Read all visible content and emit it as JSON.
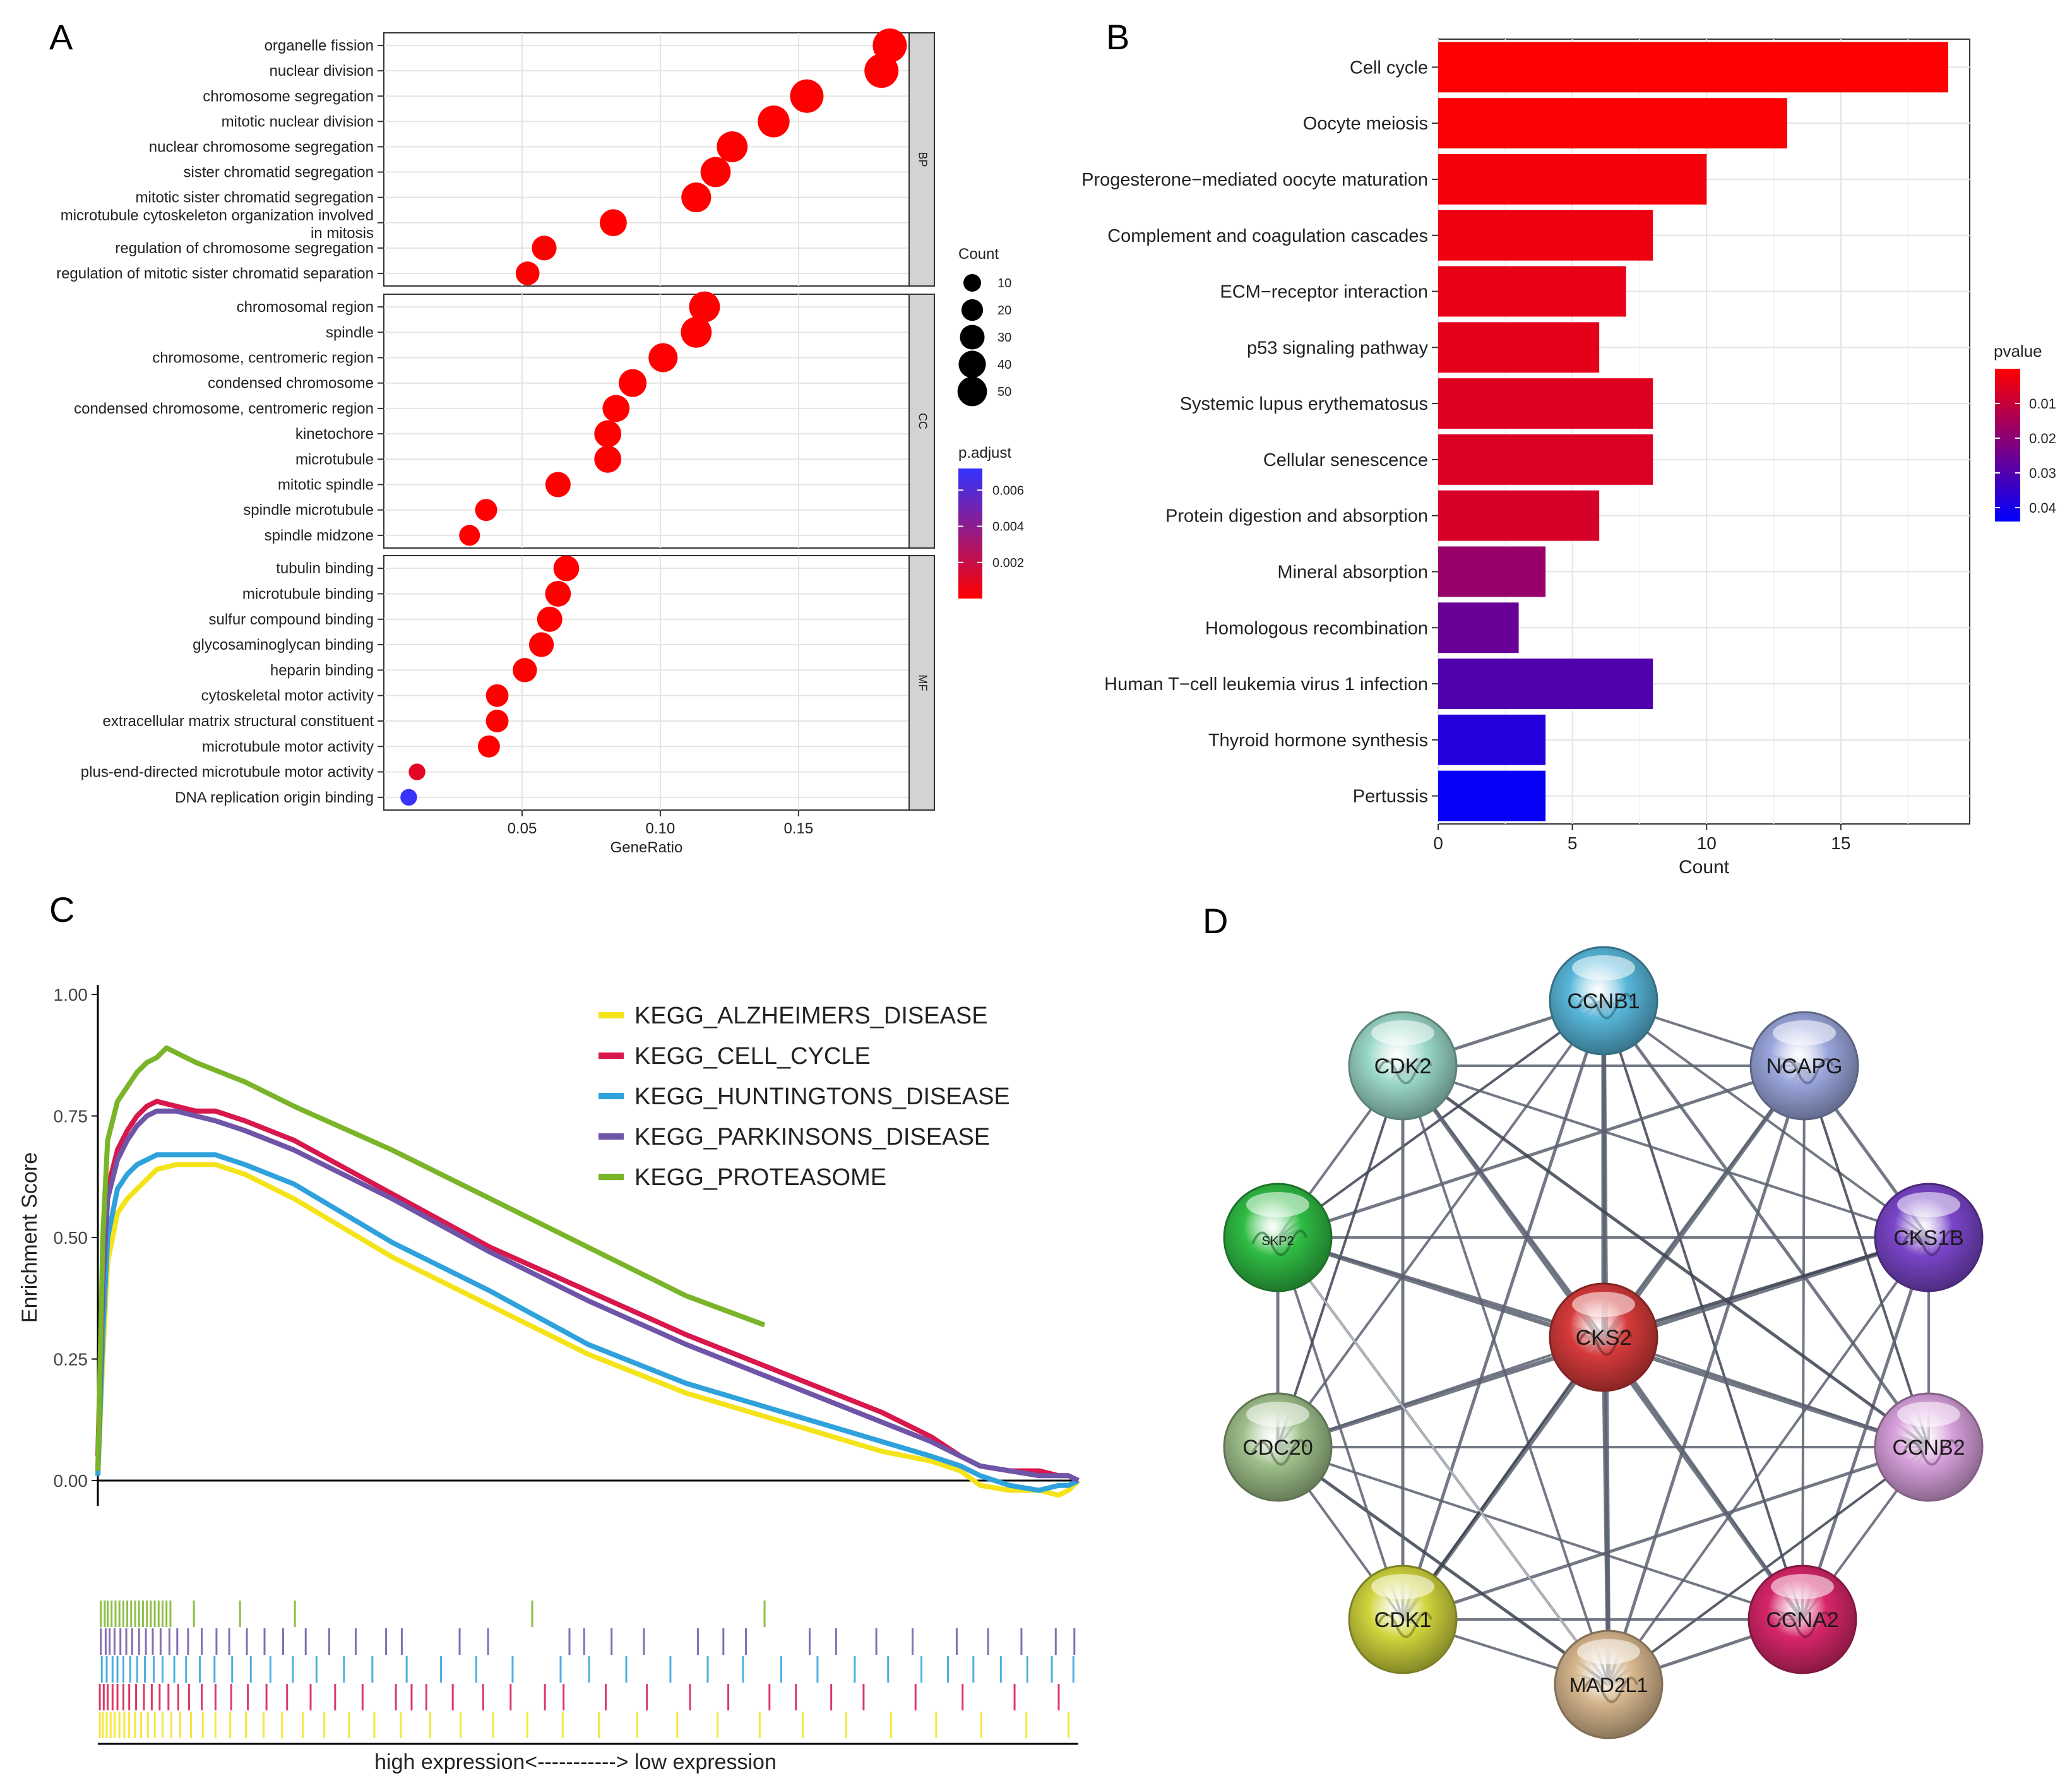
{
  "panel_letters": [
    "A",
    "B",
    "C",
    "D"
  ],
  "chart_data": [
    {
      "panel": "A",
      "type": "scatter",
      "xlabel": "GeneRatio",
      "xlim": [
        0.0,
        0.19
      ],
      "xticks": [
        "0.05",
        "0.10",
        "0.15"
      ],
      "xtick_values": [
        0.05,
        0.1,
        0.15
      ],
      "grid": true,
      "facets": [
        {
          "name": "BP",
          "terms": [
            {
              "label": [
                "organelle fission"
              ],
              "x": 0.183,
              "count": 40,
              "p_adjust": 0.0
            },
            {
              "label": [
                "nuclear division"
              ],
              "x": 0.18,
              "count": 40,
              "p_adjust": 0.0
            },
            {
              "label": [
                "chromosome segregation"
              ],
              "x": 0.153,
              "count": 38,
              "p_adjust": 0.0
            },
            {
              "label": [
                "mitotic nuclear division"
              ],
              "x": 0.141,
              "count": 33,
              "p_adjust": 0.0
            },
            {
              "label": [
                "nuclear chromosome segregation"
              ],
              "x": 0.126,
              "count": 30,
              "p_adjust": 0.0
            },
            {
              "label": [
                "sister chromatid segregation"
              ],
              "x": 0.12,
              "count": 28,
              "p_adjust": 0.0
            },
            {
              "label": [
                "mitotic sister chromatid segregation"
              ],
              "x": 0.113,
              "count": 27,
              "p_adjust": 0.0
            },
            {
              "label": [
                "microtubule cytoskeleton organization involved",
                "in mitosis"
              ],
              "x": 0.083,
              "count": 20,
              "p_adjust": 0.0
            },
            {
              "label": [
                "regulation of chromosome segregation"
              ],
              "x": 0.058,
              "count": 15,
              "p_adjust": 0.0
            },
            {
              "label": [
                "regulation of mitotic sister chromatid separation"
              ],
              "x": 0.052,
              "count": 13,
              "p_adjust": 0.0
            }
          ]
        },
        {
          "name": "CC",
          "terms": [
            {
              "label": [
                "chromosomal region"
              ],
              "x": 0.116,
              "count": 30,
              "p_adjust": 0.0
            },
            {
              "label": [
                "spindle"
              ],
              "x": 0.113,
              "count": 30,
              "p_adjust": 0.0
            },
            {
              "label": [
                "chromosome, centromeric region"
              ],
              "x": 0.101,
              "count": 25,
              "p_adjust": 0.0
            },
            {
              "label": [
                "condensed chromosome"
              ],
              "x": 0.09,
              "count": 22,
              "p_adjust": 0.0
            },
            {
              "label": [
                "condensed chromosome, centromeric region"
              ],
              "x": 0.084,
              "count": 20,
              "p_adjust": 0.0
            },
            {
              "label": [
                "kinetochore"
              ],
              "x": 0.081,
              "count": 20,
              "p_adjust": 0.0
            },
            {
              "label": [
                "microtubule"
              ],
              "x": 0.081,
              "count": 20,
              "p_adjust": 0.0
            },
            {
              "label": [
                "mitotic spindle"
              ],
              "x": 0.063,
              "count": 16,
              "p_adjust": 0.0
            },
            {
              "label": [
                "spindle microtubule"
              ],
              "x": 0.037,
              "count": 10,
              "p_adjust": 0.0
            },
            {
              "label": [
                "spindle midzone"
              ],
              "x": 0.031,
              "count": 8,
              "p_adjust": 0.0
            }
          ]
        },
        {
          "name": "MF",
          "terms": [
            {
              "label": [
                "tubulin binding"
              ],
              "x": 0.066,
              "count": 17,
              "p_adjust": 0.0
            },
            {
              "label": [
                "microtubule binding"
              ],
              "x": 0.063,
              "count": 17,
              "p_adjust": 0.0
            },
            {
              "label": [
                "sulfur compound binding"
              ],
              "x": 0.06,
              "count": 16,
              "p_adjust": 0.0
            },
            {
              "label": [
                "glycosaminoglycan binding"
              ],
              "x": 0.057,
              "count": 15,
              "p_adjust": 0.0
            },
            {
              "label": [
                "heparin binding"
              ],
              "x": 0.051,
              "count": 14,
              "p_adjust": 0.0
            },
            {
              "label": [
                "cytoskeletal motor activity"
              ],
              "x": 0.041,
              "count": 11,
              "p_adjust": 0.0
            },
            {
              "label": [
                "extracellular matrix structural constituent"
              ],
              "x": 0.041,
              "count": 11,
              "p_adjust": 0.0
            },
            {
              "label": [
                "microtubule motor activity"
              ],
              "x": 0.038,
              "count": 10,
              "p_adjust": 0.0
            },
            {
              "label": [
                "plus-end-directed microtubule motor activity"
              ],
              "x": 0.012,
              "count": 3,
              "p_adjust": 0.001
            },
            {
              "label": [
                "DNA replication origin binding"
              ],
              "x": 0.009,
              "count": 3,
              "p_adjust": 0.007
            }
          ]
        }
      ],
      "size_legend": {
        "title": "Count",
        "values": [
          10,
          20,
          30,
          40,
          50
        ]
      },
      "color_legend": {
        "title": "p.adjust",
        "ticks": [
          "0.006",
          "0.004",
          "0.002"
        ],
        "tick_values": [
          0.006,
          0.004,
          0.002
        ],
        "range": [
          0.0,
          0.0072
        ],
        "low_color": "#ff0000",
        "high_color": "#3333ff"
      }
    },
    {
      "panel": "B",
      "type": "bar",
      "orientation": "horizontal",
      "xlabel": "Count",
      "xlim": [
        0,
        19.8
      ],
      "xticks": [
        "0",
        "5",
        "10",
        "15"
      ],
      "xtick_values": [
        0,
        5,
        10,
        15
      ],
      "grid": true,
      "categories": [
        "Cell cycle",
        "Oocyte meiosis",
        "Progesterone−mediated oocyte maturation",
        "Complement and coagulation cascades",
        "ECM−receptor interaction",
        "p53 signaling pathway",
        "Systemic lupus erythematosus",
        "Cellular senescence",
        "Protein digestion and absorption",
        "Mineral absorption",
        "Homologous recombination",
        "Human T−cell leukemia virus 1 infection",
        "Thyroid hormone synthesis",
        "Pertussis"
      ],
      "values": [
        19,
        13,
        10,
        8,
        7,
        6,
        8,
        8,
        6,
        4,
        3,
        8,
        4,
        4
      ],
      "pvalues": [
        0.0002,
        0.0005,
        0.0015,
        0.003,
        0.004,
        0.0045,
        0.0055,
        0.006,
        0.007,
        0.018,
        0.026,
        0.03,
        0.038,
        0.043
      ],
      "color_legend": {
        "title": "pvalue",
        "ticks": [
          "0.01",
          "0.02",
          "0.03",
          "0.04"
        ],
        "tick_values": [
          0.01,
          0.02,
          0.03,
          0.04
        ],
        "range": [
          0.0,
          0.044
        ],
        "low_color": "#ff0000",
        "high_color": "#0000ff"
      }
    },
    {
      "panel": "C",
      "type": "line",
      "ylabel": "Enrichment Score",
      "ylim": [
        0.0,
        1.0
      ],
      "yticks": [
        "0.00",
        "0.25",
        "0.50",
        "0.75",
        "1.00"
      ],
      "ytick_values": [
        0.0,
        0.25,
        0.5,
        0.75,
        1.0
      ],
      "xlim": [
        0,
        100
      ],
      "axis_caption": "high expression<-----------> low expression",
      "legend_position": "top-right",
      "series": [
        {
          "name": "KEGG_ALZHEIMERS_DISEASE",
          "color": "#f5e31a",
          "x": [
            0,
            0.5,
            1,
            2,
            3,
            4,
            5,
            6,
            8,
            10,
            12,
            15,
            20,
            30,
            40,
            50,
            60,
            70,
            80,
            85,
            88,
            90,
            93,
            96,
            98,
            99,
            100
          ],
          "y": [
            0.01,
            0.25,
            0.45,
            0.55,
            0.58,
            0.6,
            0.62,
            0.64,
            0.65,
            0.65,
            0.65,
            0.63,
            0.58,
            0.46,
            0.36,
            0.26,
            0.18,
            0.12,
            0.06,
            0.04,
            0.02,
            -0.01,
            -0.02,
            -0.02,
            -0.03,
            -0.02,
            0.0
          ]
        },
        {
          "name": "KEGG_CELL_CYCLE",
          "color": "#d8174d",
          "x": [
            0,
            0.5,
            1,
            2,
            3,
            4,
            5,
            6,
            8,
            10,
            12,
            15,
            20,
            30,
            40,
            50,
            60,
            70,
            80,
            85,
            88,
            90,
            93,
            96,
            98,
            99,
            100
          ],
          "y": [
            0.05,
            0.45,
            0.6,
            0.68,
            0.72,
            0.75,
            0.77,
            0.78,
            0.77,
            0.76,
            0.76,
            0.74,
            0.7,
            0.59,
            0.48,
            0.39,
            0.3,
            0.22,
            0.14,
            0.09,
            0.05,
            0.03,
            0.02,
            0.02,
            0.01,
            0.01,
            0.0
          ]
        },
        {
          "name": "KEGG_HUNTINGTONS_DISEASE",
          "color": "#2fa2dc",
          "x": [
            0,
            0.5,
            1,
            2,
            3,
            4,
            5,
            6,
            8,
            10,
            12,
            15,
            20,
            30,
            40,
            50,
            60,
            70,
            80,
            85,
            88,
            90,
            93,
            96,
            98,
            99,
            100
          ],
          "y": [
            0.01,
            0.3,
            0.5,
            0.6,
            0.63,
            0.65,
            0.66,
            0.67,
            0.67,
            0.67,
            0.67,
            0.65,
            0.61,
            0.49,
            0.39,
            0.28,
            0.2,
            0.14,
            0.08,
            0.05,
            0.03,
            0.01,
            -0.01,
            -0.02,
            -0.01,
            -0.01,
            0.0
          ]
        },
        {
          "name": "KEGG_PARKINSONS_DISEASE",
          "color": "#6f55a8",
          "x": [
            0,
            0.5,
            1,
            2,
            3,
            4,
            5,
            6,
            8,
            10,
            12,
            15,
            20,
            30,
            40,
            50,
            60,
            70,
            80,
            85,
            88,
            90,
            93,
            96,
            98,
            99,
            100
          ],
          "y": [
            0.02,
            0.4,
            0.58,
            0.66,
            0.7,
            0.73,
            0.75,
            0.76,
            0.76,
            0.75,
            0.74,
            0.72,
            0.68,
            0.58,
            0.47,
            0.37,
            0.28,
            0.2,
            0.12,
            0.08,
            0.05,
            0.03,
            0.02,
            0.01,
            0.01,
            0.01,
            0.0
          ]
        },
        {
          "name": "KEGG_PROTEASOME",
          "color": "#7ab428",
          "x": [
            0,
            0.5,
            1,
            2,
            3,
            4,
            5,
            6,
            7,
            8,
            10,
            15,
            20,
            30,
            40,
            50,
            60,
            68
          ],
          "y": [
            0.02,
            0.5,
            0.7,
            0.78,
            0.81,
            0.84,
            0.86,
            0.87,
            0.89,
            0.88,
            0.86,
            0.82,
            0.77,
            0.68,
            0.58,
            0.48,
            0.38,
            0.32
          ]
        }
      ],
      "hit_ticks": [
        {
          "series": "KEGG_PROTEASOME",
          "positions": [
            0.3,
            0.7,
            1.0,
            1.4,
            1.8,
            2.2,
            2.6,
            3.0,
            3.4,
            3.8,
            4.2,
            4.6,
            5.0,
            5.4,
            5.8,
            6.2,
            6.6,
            7.0,
            7.4,
            9.8,
            14.5,
            20.1,
            44.3,
            68.0
          ]
        },
        {
          "series": "KEGG_PARKINSONS_DISEASE",
          "positions": [
            0.3,
            0.8,
            1.2,
            1.7,
            2.3,
            2.9,
            3.5,
            4.2,
            4.9,
            5.6,
            6.4,
            7.3,
            8.1,
            9.2,
            10.6,
            12.1,
            13.4,
            15.2,
            17.0,
            18.9,
            21.2,
            23.6,
            26.3,
            29.4,
            31.0,
            36.9,
            39.8,
            48.1,
            49.6,
            52.4,
            55.7,
            61.2,
            63.8,
            66.1,
            72.6,
            75.3,
            79.4,
            83.1,
            87.6,
            90.8,
            94.2,
            97.7,
            99.6
          ]
        },
        {
          "series": "KEGG_HUNTINGTONS_DISEASE",
          "positions": [
            0.4,
            0.9,
            1.5,
            2.0,
            2.6,
            3.3,
            4.0,
            4.8,
            5.7,
            6.6,
            7.8,
            9.0,
            10.4,
            11.9,
            13.7,
            15.6,
            17.6,
            19.9,
            22.3,
            25.1,
            28.0,
            31.5,
            35.0,
            38.6,
            42.3,
            47.2,
            50.1,
            53.9,
            58.4,
            62.2,
            65.8,
            69.7,
            73.4,
            77.2,
            80.6,
            84.0,
            86.7,
            89.3,
            92.1,
            94.8,
            97.3,
            99.5
          ]
        },
        {
          "series": "KEGG_CELL_CYCLE",
          "positions": [
            0.2,
            0.6,
            1.0,
            1.5,
            2.0,
            2.6,
            3.2,
            3.9,
            4.7,
            5.5,
            6.3,
            7.2,
            8.2,
            9.3,
            10.6,
            12.0,
            13.6,
            15.3,
            17.2,
            19.3,
            21.7,
            24.2,
            27.0,
            30.4,
            32.0,
            33.5,
            36.2,
            39.3,
            42.1,
            45.6,
            47.5,
            51.8,
            56.0,
            60.4,
            64.3,
            68.5,
            71.2,
            74.8,
            78.1,
            83.4,
            88.2,
            93.5,
            98.0
          ]
        },
        {
          "series": "KEGG_ALZHEIMERS_DISEASE",
          "positions": [
            0.2,
            0.5,
            0.9,
            1.3,
            1.7,
            2.2,
            2.7,
            3.2,
            3.8,
            4.4,
            5.1,
            5.8,
            6.6,
            7.5,
            8.4,
            9.5,
            10.7,
            12.0,
            13.5,
            15.1,
            16.9,
            18.8,
            20.9,
            23.1,
            25.6,
            28.2,
            30.9,
            33.9,
            37.0,
            40.3,
            43.8,
            47.4,
            51.1,
            55.0,
            59.1,
            63.2,
            67.5,
            71.9,
            76.3,
            80.9,
            85.5,
            90.1,
            94.7,
            99.0
          ]
        }
      ]
    }
  ],
  "network": {
    "panel": "D",
    "nodes": [
      {
        "label": "CCNB1",
        "color": "#58b7da"
      },
      {
        "label": "NCAPG",
        "color": "#9aa6dc"
      },
      {
        "label": "CKS1B",
        "color": "#7a45c9"
      },
      {
        "label": "CCNB2",
        "color": "#d8a0dc"
      },
      {
        "label": "CCNA2",
        "color": "#d8266a"
      },
      {
        "label": "MAD2L1",
        "color": "#d7b78e"
      },
      {
        "label": "CDK1",
        "color": "#cfd43c"
      },
      {
        "label": "CDC20",
        "color": "#9fc08a"
      },
      {
        "label": "SKP2",
        "color": "#2fbc44"
      },
      {
        "label": "CDK2",
        "color": "#9ad8c8"
      },
      {
        "label": "CKS2",
        "color": "#d73a3a"
      }
    ]
  }
}
